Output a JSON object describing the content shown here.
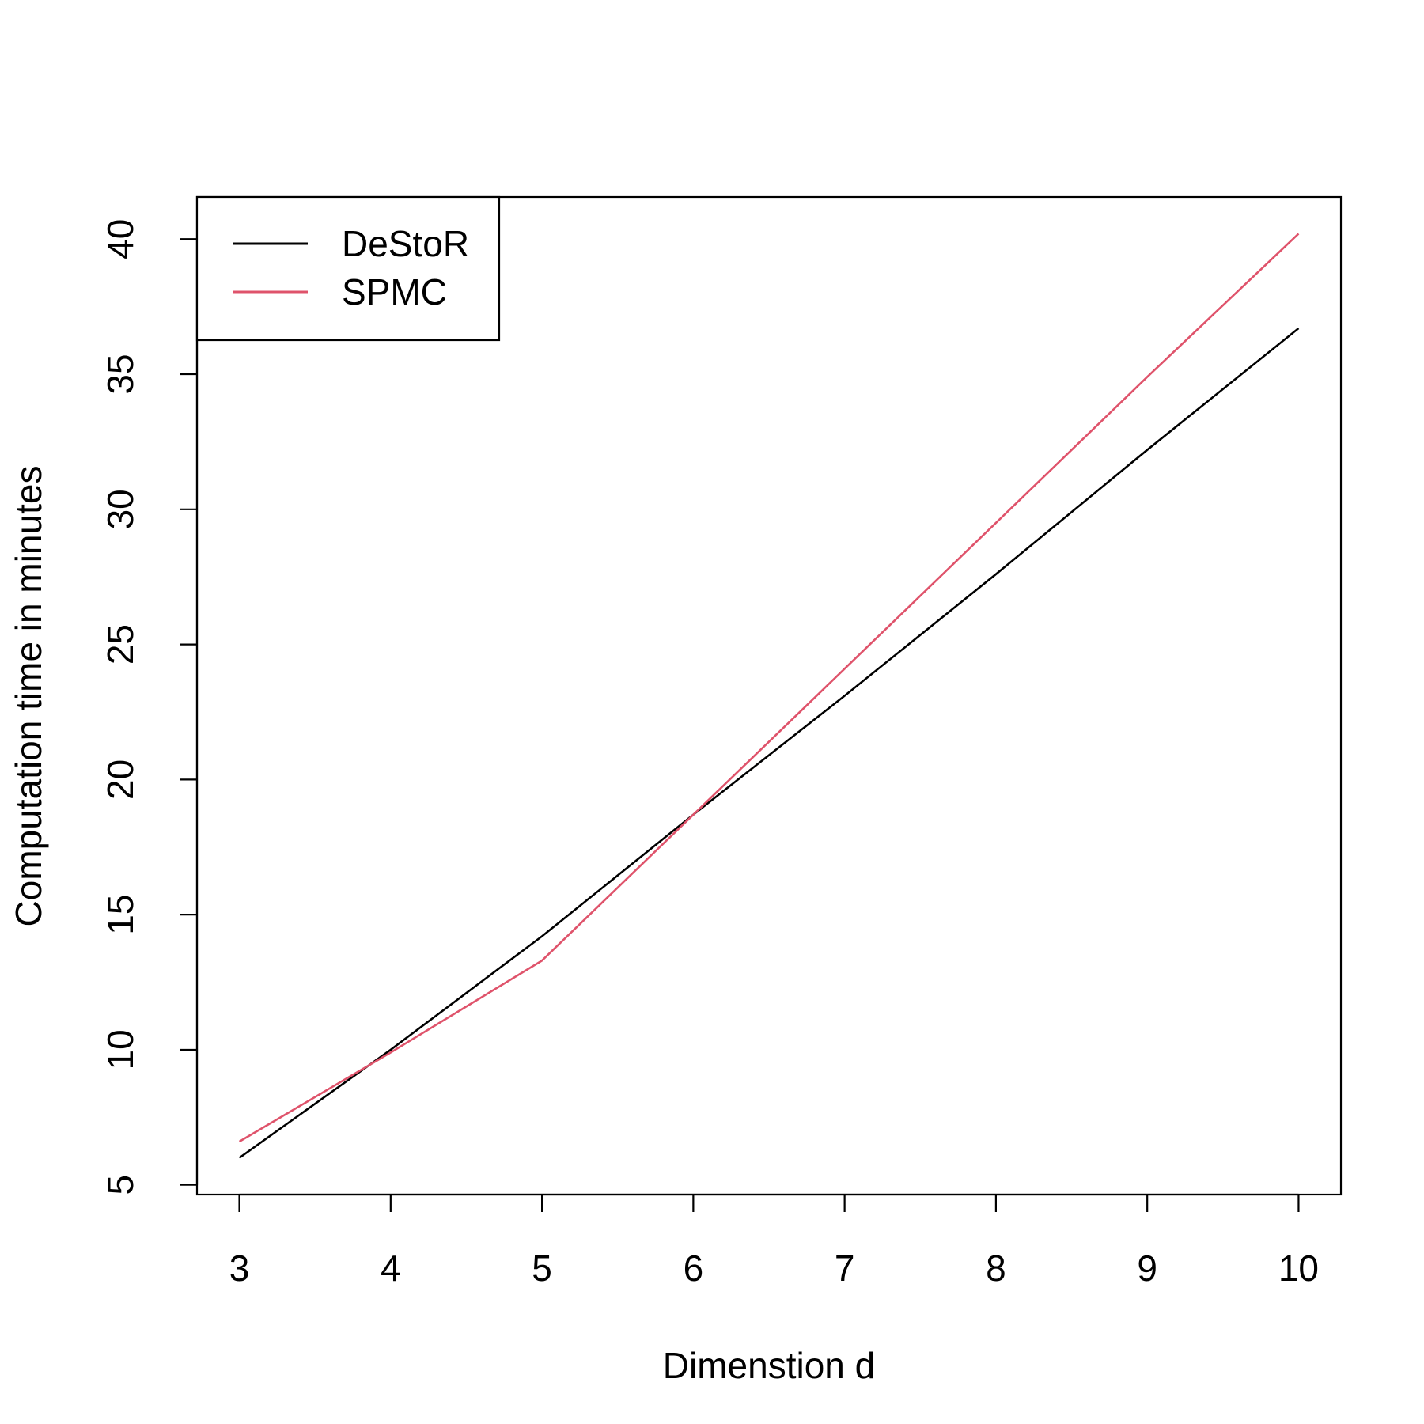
{
  "chart_data": {
    "type": "line",
    "title": "",
    "xlabel": "Dimenstion d",
    "ylabel": "Computation time in minutes",
    "xlim": [
      2.72,
      10.28
    ],
    "ylim": [
      4.64,
      41.56
    ],
    "xticks": [
      3,
      4,
      5,
      6,
      7,
      8,
      9,
      10
    ],
    "yticks": [
      5,
      10,
      15,
      20,
      25,
      30,
      35,
      40
    ],
    "grid": false,
    "legend_position": "top-left",
    "x": [
      3,
      4,
      5,
      6,
      7,
      8,
      9,
      10
    ],
    "series": [
      {
        "name": "DeStoR",
        "color": "#000000",
        "values": [
          6.0,
          10.0,
          14.2,
          18.7,
          23.1,
          27.6,
          32.2,
          36.7
        ]
      },
      {
        "name": "SPMC",
        "color": "#DF536B",
        "values": [
          6.6,
          9.9,
          13.3,
          18.7,
          24.1,
          29.5,
          34.9,
          40.2
        ]
      }
    ]
  }
}
